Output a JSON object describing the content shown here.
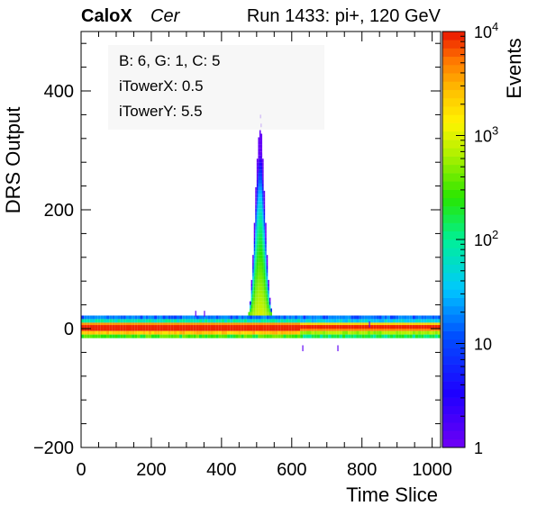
{
  "header": {
    "brand": "CaloX",
    "channel": "Cer",
    "run_text": "Run 1433: pi+, 120 GeV"
  },
  "info_box": {
    "line1": "B: 6, G: 1, C: 5",
    "line2": "iTowerX: 0.5",
    "line3": "iTowerY: 5.5"
  },
  "chart_data": {
    "type": "heatmap",
    "title": "",
    "xlabel": "Time Slice",
    "ylabel": "DRS Output",
    "zlabel": "Events",
    "xlim": [
      0,
      1024
    ],
    "ylim": [
      -200,
      500
    ],
    "zlim": [
      1,
      10000
    ],
    "z_log_scale": true,
    "x_ticks": [
      "0",
      "200",
      "400",
      "600",
      "800",
      "1000"
    ],
    "y_ticks": [
      "−200",
      "0",
      "200",
      "400"
    ],
    "z_ticks": [
      "1",
      "10",
      "10^2",
      "10^3",
      "10^4"
    ],
    "features": [
      {
        "name": "baseline band",
        "x_range": [
          0,
          1024
        ],
        "y_range": [
          -18,
          22
        ],
        "peak_events": 10000
      },
      {
        "name": "pulse",
        "x_range": [
          460,
          560
        ],
        "y_peak": 360,
        "x_peak": 510
      }
    ]
  }
}
